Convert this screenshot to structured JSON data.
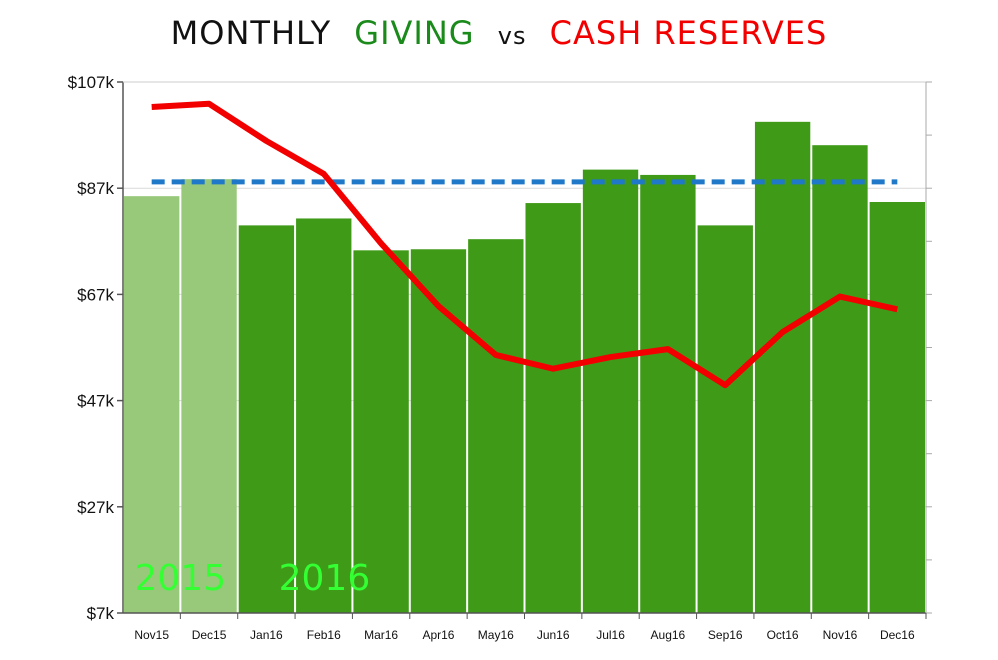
{
  "title": {
    "part1": "MONTHLY",
    "part2": "GIVING",
    "part3": "vs",
    "part4": "CASH RESERVES"
  },
  "chart_data": {
    "type": "bar",
    "title": "MONTHLY GIVING vs CASH RESERVES",
    "xlabel": "",
    "ylabel": "",
    "categories": [
      "Nov15",
      "Dec15",
      "Jan16",
      "Feb16",
      "Mar16",
      "Apr16",
      "May16",
      "Jun16",
      "Jul16",
      "Aug16",
      "Sep16",
      "Oct16",
      "Nov16",
      "Dec16"
    ],
    "ylim": [
      7,
      107
    ],
    "yticks": [
      7,
      27,
      47,
      67,
      87,
      107
    ],
    "ytick_labels": [
      "$7k",
      "$27k",
      "$47k",
      "$67k",
      "$87k",
      "$107k"
    ],
    "series": [
      {
        "kind": "bar",
        "values": [
          85.5,
          88.7,
          80.0,
          81.3,
          75.3,
          75.5,
          77.4,
          84.2,
          90.5,
          89.5,
          80.0,
          99.5,
          95.1,
          84.4
        ],
        "colors": [
          "#98c97a",
          "#98c97a",
          "#3f9a18",
          "#3f9a18",
          "#3f9a18",
          "#3f9a18",
          "#3f9a18",
          "#3f9a18",
          "#3f9a18",
          "#3f9a18",
          "#3f9a18",
          "#3f9a18",
          "#3f9a18",
          "#3f9a18"
        ]
      },
      {
        "kind": "line",
        "color": "#f20000",
        "values": [
          102.3,
          102.9,
          95.9,
          89.7,
          76.6,
          64.8,
          55.6,
          53.0,
          55.2,
          56.7,
          49.9,
          59.9,
          66.6,
          64.2
        ]
      },
      {
        "kind": "reference-line",
        "style": "dashed",
        "color": "#1f78c8",
        "value": 88.2
      }
    ],
    "annotations": [
      {
        "text": "2015",
        "color": "#33ff33"
      },
      {
        "text": "2016",
        "color": "#33ff33"
      }
    ],
    "grid": true
  }
}
